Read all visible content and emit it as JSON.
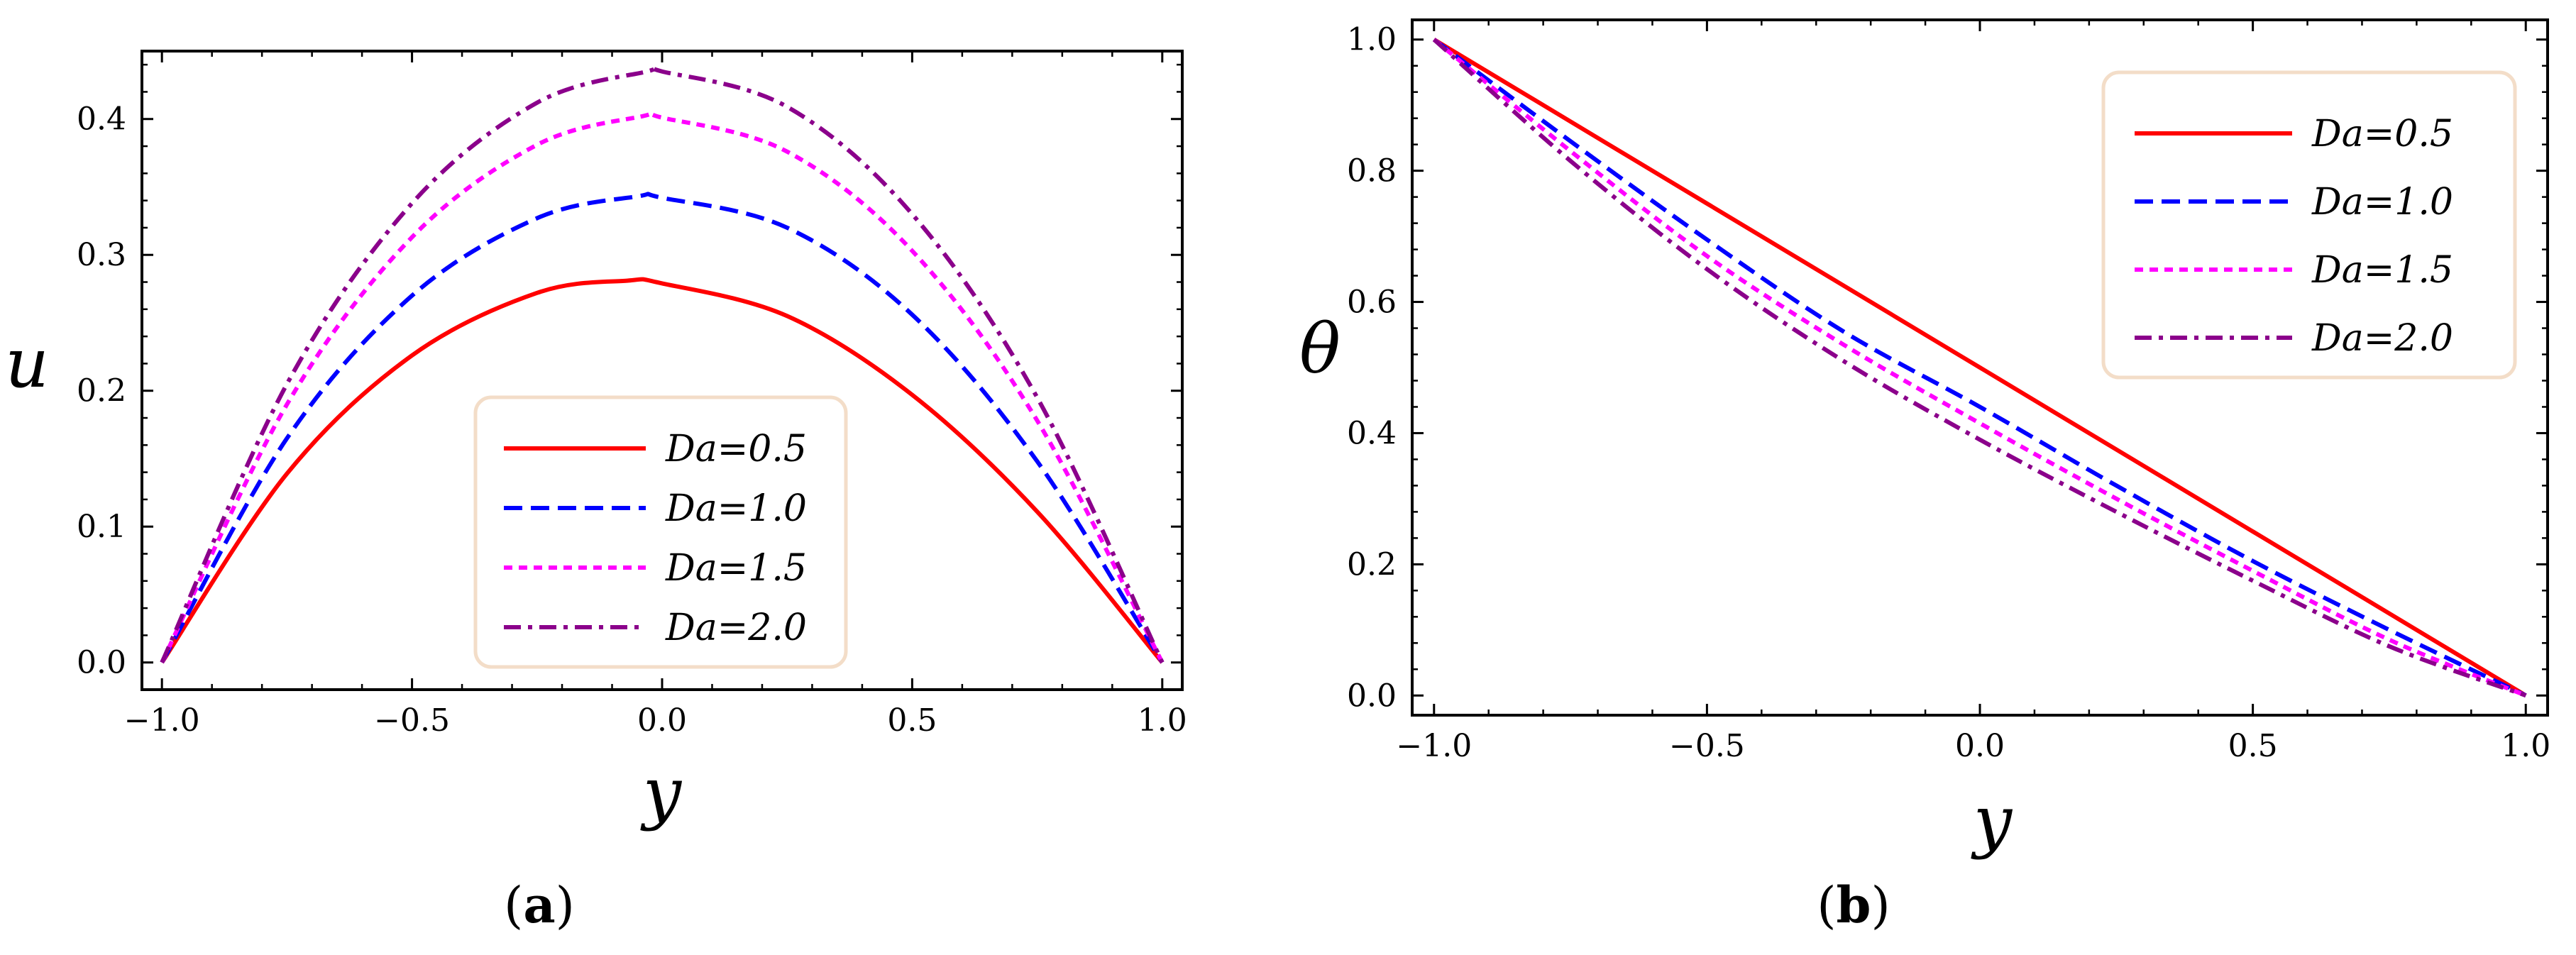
{
  "chart_data": [
    {
      "type": "line",
      "panel_label": "a",
      "xlabel": "y",
      "ylabel": "u",
      "xlim": [
        -1.04,
        1.04
      ],
      "ylim": [
        -0.02,
        0.45
      ],
      "xticks": [
        -1.0,
        -0.5,
        0.0,
        0.5,
        1.0
      ],
      "xtick_labels": [
        "−1.0",
        "−0.5",
        "0.0",
        "0.5",
        "1.0"
      ],
      "yticks": [
        0.0,
        0.1,
        0.2,
        0.3,
        0.4
      ],
      "ytick_labels": [
        "0.0",
        "0.1",
        "0.2",
        "0.3",
        "0.4"
      ],
      "legend_position": "lower-center",
      "series": [
        {
          "name": "Da=0.5",
          "color": "#ff0000",
          "dash": "solid",
          "x": [
            -1.0,
            -0.75,
            -0.5,
            -0.25,
            -0.07,
            0.0,
            0.25,
            0.5,
            0.75,
            1.0
          ],
          "y": [
            0.0,
            0.139,
            0.226,
            0.272,
            0.281,
            0.279,
            0.255,
            0.197,
            0.111,
            0.0
          ]
        },
        {
          "name": "Da=1.0",
          "color": "#0000ff",
          "dash": "dashed",
          "x": [
            -1.0,
            -0.75,
            -0.5,
            -0.25,
            -0.05,
            0.0,
            0.25,
            0.5,
            0.75,
            1.0
          ],
          "y": [
            0.0,
            0.165,
            0.27,
            0.327,
            0.343,
            0.342,
            0.32,
            0.256,
            0.148,
            0.0
          ]
        },
        {
          "name": "Da=1.5",
          "color": "#ff00ff",
          "dash": "dotted",
          "x": [
            -1.0,
            -0.75,
            -0.5,
            -0.25,
            -0.04,
            0.0,
            0.25,
            0.5,
            0.75,
            1.0
          ],
          "y": [
            0.0,
            0.19,
            0.313,
            0.381,
            0.402,
            0.401,
            0.376,
            0.303,
            0.178,
            0.0
          ]
        },
        {
          "name": "Da=2.0",
          "color": "#8b008b",
          "dash": "dashdot",
          "x": [
            -1.0,
            -0.75,
            -0.5,
            -0.25,
            -0.03,
            0.0,
            0.25,
            0.5,
            0.75,
            1.0
          ],
          "y": [
            0.0,
            0.205,
            0.338,
            0.412,
            0.435,
            0.435,
            0.409,
            0.33,
            0.195,
            0.0
          ]
        }
      ]
    },
    {
      "type": "line",
      "panel_label": "b",
      "xlabel": "y",
      "ylabel": "θ",
      "xlim": [
        -1.04,
        1.04
      ],
      "ylim": [
        -0.03,
        1.03
      ],
      "xticks": [
        -1.0,
        -0.5,
        0.0,
        0.5,
        1.0
      ],
      "xtick_labels": [
        "−1.0",
        "−0.5",
        "0.0",
        "0.5",
        "1.0"
      ],
      "yticks": [
        0.0,
        0.2,
        0.4,
        0.6,
        0.8,
        1.0
      ],
      "ytick_labels": [
        "0.0",
        "0.2",
        "0.4",
        "0.6",
        "0.8",
        "1.0"
      ],
      "legend_position": "upper-right",
      "series": [
        {
          "name": "Da=0.5",
          "color": "#ff0000",
          "dash": "solid",
          "x": [
            -1.0,
            -0.5,
            0.0,
            0.5,
            1.0
          ],
          "y": [
            1.0,
            0.75,
            0.5,
            0.25,
            0.0
          ]
        },
        {
          "name": "Da=1.0",
          "color": "#0000ff",
          "dash": "dashed",
          "x": [
            -1.0,
            -0.75,
            -0.5,
            -0.25,
            0.0,
            0.25,
            0.5,
            0.75,
            1.0
          ],
          "y": [
            1.0,
            0.845,
            0.695,
            0.555,
            0.44,
            0.32,
            0.205,
            0.1,
            0.0
          ]
        },
        {
          "name": "Da=1.5",
          "color": "#ff00ff",
          "dash": "dotted",
          "x": [
            -1.0,
            -0.75,
            -0.5,
            -0.25,
            0.0,
            0.25,
            0.5,
            0.75,
            1.0
          ],
          "y": [
            1.0,
            0.83,
            0.67,
            0.535,
            0.415,
            0.3,
            0.19,
            0.085,
            0.0
          ]
        },
        {
          "name": "Da=2.0",
          "color": "#8b008b",
          "dash": "dashdot",
          "x": [
            -1.0,
            -0.75,
            -0.5,
            -0.25,
            0.0,
            0.25,
            0.5,
            0.75,
            1.0
          ],
          "y": [
            1.0,
            0.815,
            0.65,
            0.51,
            0.39,
            0.28,
            0.175,
            0.075,
            0.0
          ]
        }
      ]
    }
  ]
}
